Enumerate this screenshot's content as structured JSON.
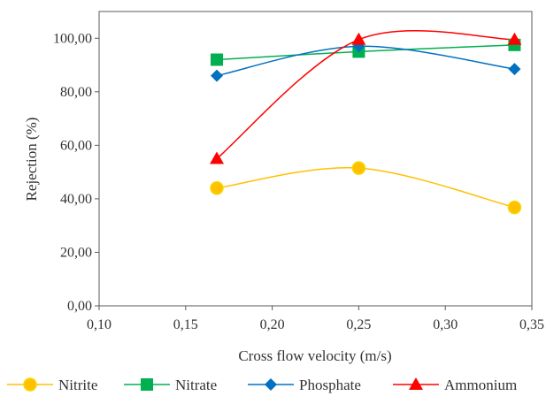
{
  "chart_data": {
    "type": "line",
    "xlabel": "Cross flow velocity (m/s)",
    "ylabel": "Rejection (%)",
    "xlim": [
      0.1,
      0.35
    ],
    "ylim": [
      0,
      110
    ],
    "x_ticks": [
      "0,10",
      "0,15",
      "0,20",
      "0,25",
      "0,30",
      "0,35"
    ],
    "y_ticks": [
      "0,00",
      "20,00",
      "40,00",
      "60,00",
      "80,00",
      "100,00"
    ],
    "x_tick_values": [
      0.1,
      0.15,
      0.2,
      0.25,
      0.3,
      0.35
    ],
    "y_tick_values": [
      0,
      20,
      40,
      60,
      80,
      100
    ],
    "grid": false,
    "legend_position": "bottom",
    "series": [
      {
        "name": "Nitrite",
        "x": [
          0.168,
          0.25,
          0.34
        ],
        "values": [
          44.0,
          51.5,
          36.8
        ],
        "color": "#FFC000",
        "marker": "circle",
        "marker_edge": "#F5D800"
      },
      {
        "name": "Nitrate",
        "x": [
          0.168,
          0.25,
          0.34
        ],
        "values": [
          92.0,
          95.0,
          97.5
        ],
        "color": "#00B050",
        "marker": "square"
      },
      {
        "name": "Phosphate",
        "x": [
          0.168,
          0.25,
          0.34
        ],
        "values": [
          86.0,
          97.0,
          88.5
        ],
        "color": "#0070C0",
        "marker": "diamond"
      },
      {
        "name": "Ammonium",
        "x": [
          0.168,
          0.25,
          0.34
        ],
        "values": [
          55.0,
          99.5,
          99.5
        ],
        "color": "#FF0000",
        "marker": "triangle"
      }
    ]
  }
}
